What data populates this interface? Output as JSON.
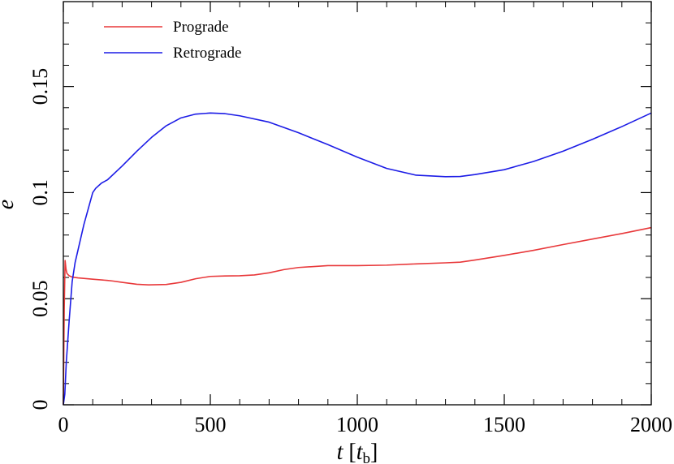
{
  "chart_data": {
    "type": "line",
    "title": "",
    "xlabel": {
      "main": "t",
      "open": " [",
      "unit": "t",
      "sub": "b",
      "close": "]"
    },
    "ylabel": "e",
    "xlim": [
      0,
      2000
    ],
    "ylim": [
      0,
      0.19
    ],
    "x_ticks": [
      0,
      500,
      1000,
      1500,
      2000
    ],
    "x_tick_labels": [
      "0",
      "500",
      "1000",
      "1500",
      "2000"
    ],
    "y_ticks": [
      0,
      0.05,
      0.1,
      0.15
    ],
    "y_tick_labels": [
      "0",
      "0.05",
      "0.1",
      "0.15"
    ],
    "grid": false,
    "legend_position": "top-left",
    "series": [
      {
        "name": "Prograde",
        "color": "#e8383a",
        "x": [
          0,
          3,
          6,
          9,
          12,
          16,
          20,
          30,
          50,
          100,
          150,
          170,
          200,
          250,
          290,
          350,
          400,
          450,
          500,
          550,
          600,
          650,
          700,
          750,
          800,
          900,
          1000,
          1100,
          1200,
          1300,
          1350,
          1400,
          1500,
          1600,
          1700,
          1800,
          1900,
          2000
        ],
        "y": [
          0.0,
          0.045,
          0.068,
          0.064,
          0.062,
          0.0613,
          0.0608,
          0.0602,
          0.0598,
          0.0592,
          0.0586,
          0.0583,
          0.0577,
          0.0568,
          0.0565,
          0.0567,
          0.0577,
          0.0594,
          0.0605,
          0.0607,
          0.0608,
          0.0612,
          0.0622,
          0.0637,
          0.0647,
          0.0656,
          0.0656,
          0.0658,
          0.0664,
          0.0669,
          0.0672,
          0.0682,
          0.0704,
          0.0728,
          0.0755,
          0.0781,
          0.0807,
          0.0835
        ]
      },
      {
        "name": "Retrograde",
        "color": "#1c1ce6",
        "x": [
          0,
          5,
          10,
          20,
          30,
          40,
          50,
          70,
          100,
          110,
          130,
          150,
          200,
          250,
          300,
          350,
          400,
          450,
          500,
          550,
          600,
          700,
          800,
          900,
          1000,
          1100,
          1200,
          1300,
          1350,
          1400,
          1500,
          1600,
          1700,
          1800,
          1900,
          2000
        ],
        "y": [
          0.0,
          0.005,
          0.02,
          0.04,
          0.058,
          0.067,
          0.073,
          0.085,
          0.1,
          0.102,
          0.1045,
          0.106,
          0.1125,
          0.1195,
          0.126,
          0.1315,
          0.1352,
          0.137,
          0.1375,
          0.1372,
          0.1362,
          0.1332,
          0.1282,
          0.1226,
          0.1167,
          0.1114,
          0.1082,
          0.1075,
          0.1076,
          0.1085,
          0.1108,
          0.1147,
          0.1195,
          0.1251,
          0.1311,
          0.1375
        ]
      }
    ]
  }
}
